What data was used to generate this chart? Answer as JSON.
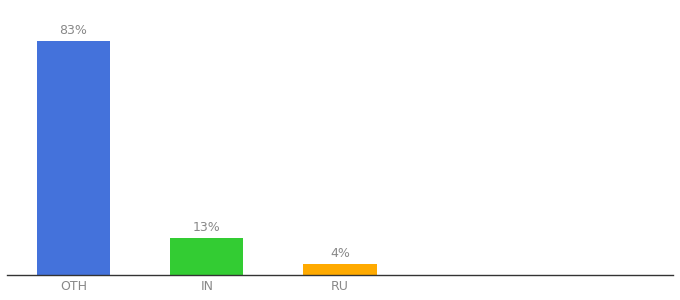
{
  "categories": [
    "OTH",
    "IN",
    "RU"
  ],
  "values": [
    83,
    13,
    4
  ],
  "bar_colors": [
    "#4472db",
    "#33cc33",
    "#ffaa00"
  ],
  "labels": [
    "83%",
    "13%",
    "4%"
  ],
  "ylim": [
    0,
    95
  ],
  "background_color": "#ffffff",
  "label_fontsize": 9,
  "tick_fontsize": 9,
  "bar_width": 0.55,
  "x_positions": [
    0.5,
    1.5,
    2.5
  ],
  "xlim": [
    0,
    5.0
  ]
}
